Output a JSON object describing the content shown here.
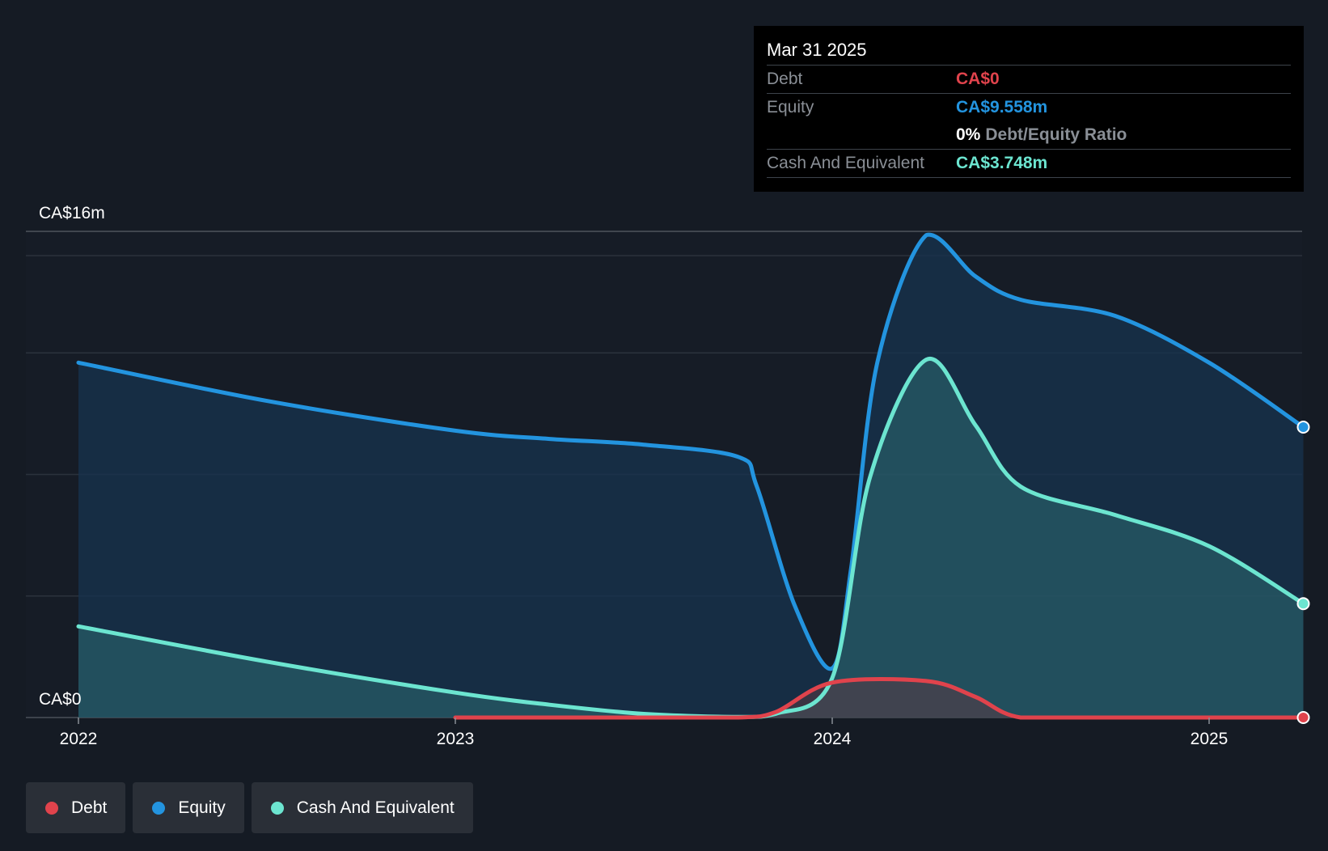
{
  "tooltip": {
    "date": "Mar 31 2025",
    "debt_label": "Debt",
    "debt_value": "CA$0",
    "equity_label": "Equity",
    "equity_value": "CA$9.558m",
    "ratio_value": "0%",
    "ratio_label": "Debt/Equity Ratio",
    "cash_label": "Cash And Equivalent",
    "cash_value": "CA$3.748m"
  },
  "legend": [
    {
      "label": "Debt",
      "color": "#e0434c"
    },
    {
      "label": "Equity",
      "color": "#2394df"
    },
    {
      "label": "Cash And Equivalent",
      "color": "#6ce5d0"
    }
  ],
  "chart_data": {
    "type": "area",
    "title": "",
    "xlabel": "",
    "ylabel": "",
    "x_ticks": [
      2022,
      2023,
      2024,
      2025
    ],
    "y_tick_labels": [
      "CA$0",
      "CA$16m"
    ],
    "ylim": [
      0,
      16
    ],
    "xlim": [
      2021.86,
      2025.25
    ],
    "grid": true,
    "units": "CA$ millions",
    "series": [
      {
        "name": "Equity",
        "color": "#2394df",
        "points": [
          [
            2022.0,
            11.68
          ],
          [
            2022.5,
            10.42
          ],
          [
            2023.0,
            9.44
          ],
          [
            2023.25,
            9.17
          ],
          [
            2023.5,
            8.98
          ],
          [
            2023.75,
            8.58
          ],
          [
            2023.8,
            7.6
          ],
          [
            2023.9,
            3.7
          ],
          [
            2024.0,
            1.62
          ],
          [
            2024.05,
            4.9
          ],
          [
            2024.12,
            11.7
          ],
          [
            2024.25,
            15.88
          ],
          [
            2024.38,
            14.52
          ],
          [
            2024.5,
            13.75
          ],
          [
            2024.75,
            13.22
          ],
          [
            2025.0,
            11.68
          ],
          [
            2025.25,
            9.558
          ]
        ]
      },
      {
        "name": "Cash And Equivalent",
        "color": "#6ce5d0",
        "points": [
          [
            2022.0,
            3.0
          ],
          [
            2022.5,
            1.84
          ],
          [
            2023.0,
            0.82
          ],
          [
            2023.25,
            0.42
          ],
          [
            2023.5,
            0.12
          ],
          [
            2023.75,
            0.02
          ],
          [
            2023.85,
            0.12
          ],
          [
            2024.0,
            1.3
          ],
          [
            2024.1,
            7.9
          ],
          [
            2024.25,
            11.78
          ],
          [
            2024.38,
            9.62
          ],
          [
            2024.5,
            7.6
          ],
          [
            2024.75,
            6.67
          ],
          [
            2025.0,
            5.64
          ],
          [
            2025.25,
            3.748
          ]
        ]
      },
      {
        "name": "Debt",
        "color": "#e0434c",
        "points": [
          [
            2023.0,
            0.0
          ],
          [
            2023.5,
            0.0
          ],
          [
            2023.75,
            0.0
          ],
          [
            2023.85,
            0.18
          ],
          [
            2024.0,
            1.15
          ],
          [
            2024.25,
            1.2
          ],
          [
            2024.38,
            0.68
          ],
          [
            2024.5,
            0.0
          ],
          [
            2024.75,
            0.0
          ],
          [
            2025.0,
            0.0
          ],
          [
            2025.25,
            0.0
          ]
        ]
      }
    ]
  }
}
